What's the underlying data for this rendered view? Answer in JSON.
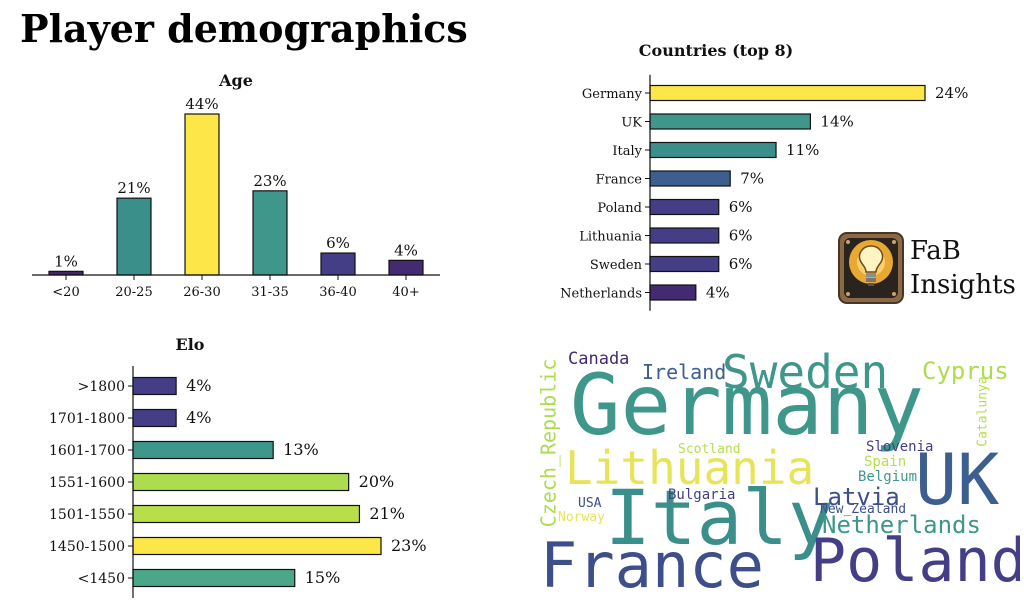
{
  "page": {
    "title": "Player demographics",
    "brand": {
      "line1": "FaB",
      "line2": "Insights"
    }
  },
  "colors": {
    "yellow": "#fde748",
    "lime": "#aedc4f",
    "teal": "#3f968b",
    "teal_light": "#4aa78a",
    "blue": "#3d5f8f",
    "indigo": "#433e85",
    "purple": "#432467"
  },
  "chart_data": [
    {
      "id": "age",
      "type": "bar",
      "title": "Age",
      "categories": [
        "<20",
        "20-25",
        "26-30",
        "31-35",
        "36-40",
        "40+"
      ],
      "values": [
        1,
        21,
        44,
        23,
        6,
        4
      ],
      "value_labels": [
        "1%",
        "21%",
        "44%",
        "23%",
        "6%",
        "4%"
      ],
      "bar_colors": [
        "#432467",
        "#3a8f8b",
        "#fde748",
        "#3f968b",
        "#433e85",
        "#432a72"
      ],
      "ylim": [
        0,
        44
      ],
      "grid": false
    },
    {
      "id": "countries",
      "type": "bar",
      "orientation": "horizontal",
      "title": "Countries (top 8)",
      "categories": [
        "Germany",
        "UK",
        "Italy",
        "France",
        "Poland",
        "Lithuania",
        "Sweden",
        "Netherlands"
      ],
      "values": [
        24,
        14,
        11,
        7,
        6,
        6,
        6,
        4
      ],
      "value_labels": [
        "24%",
        "14%",
        "11%",
        "7%",
        "6%",
        "6%",
        "6%",
        "4%"
      ],
      "bar_colors": [
        "#fde748",
        "#3f968b",
        "#3a8f8b",
        "#3d5f8f",
        "#433e85",
        "#433e85",
        "#433e85",
        "#432a72"
      ],
      "xlim": [
        0,
        24
      ],
      "grid": false
    },
    {
      "id": "elo",
      "type": "bar",
      "orientation": "horizontal",
      "title": "Elo",
      "categories": [
        ">1800",
        "1701-1800",
        "1601-1700",
        "1551-1600",
        "1501-1550",
        "1450-1500",
        "<1450"
      ],
      "values": [
        4,
        4,
        13,
        20,
        21,
        23,
        15
      ],
      "value_labels": [
        "4%",
        "4%",
        "13%",
        "20%",
        "21%",
        "23%",
        "15%"
      ],
      "bar_colors": [
        "#433e85",
        "#433e85",
        "#3f968b",
        "#aedc4f",
        "#b8de4a",
        "#fde748",
        "#4aa78a"
      ],
      "xlim": [
        0,
        23
      ],
      "grid": false
    }
  ],
  "wordcloud": {
    "words": [
      {
        "text": "Germany",
        "color": "#3f968b"
      },
      {
        "text": "UK",
        "color": "#3d5f8f"
      },
      {
        "text": "Italy",
        "color": "#3a8f8b"
      },
      {
        "text": "France",
        "color": "#3d4f8a"
      },
      {
        "text": "Poland",
        "color": "#433e85"
      },
      {
        "text": "Lithuania",
        "color": "#e8e45a"
      },
      {
        "text": "Sweden",
        "color": "#3f968b"
      },
      {
        "text": "Netherlands",
        "color": "#3f968b"
      },
      {
        "text": "Latvia",
        "color": "#3d4f8a"
      },
      {
        "text": "Czech_Republic",
        "color": "#aedc4f"
      },
      {
        "text": "Cyprus",
        "color": "#aedc4f"
      },
      {
        "text": "Ireland",
        "color": "#3d5f8f"
      },
      {
        "text": "Canada",
        "color": "#432a72"
      },
      {
        "text": "Slovenia",
        "color": "#433e85"
      },
      {
        "text": "Spain",
        "color": "#b8de4a"
      },
      {
        "text": "Belgium",
        "color": "#3f968b"
      },
      {
        "text": "Scotland",
        "color": "#b8de4a"
      },
      {
        "text": "Bulgaria",
        "color": "#433e85"
      },
      {
        "text": "New_Zealand",
        "color": "#3d4f8a"
      },
      {
        "text": "USA",
        "color": "#3d4f8a"
      },
      {
        "text": "Norway",
        "color": "#e8e45a"
      },
      {
        "text": "Catalunya",
        "color": "#b8de4a"
      }
    ]
  }
}
